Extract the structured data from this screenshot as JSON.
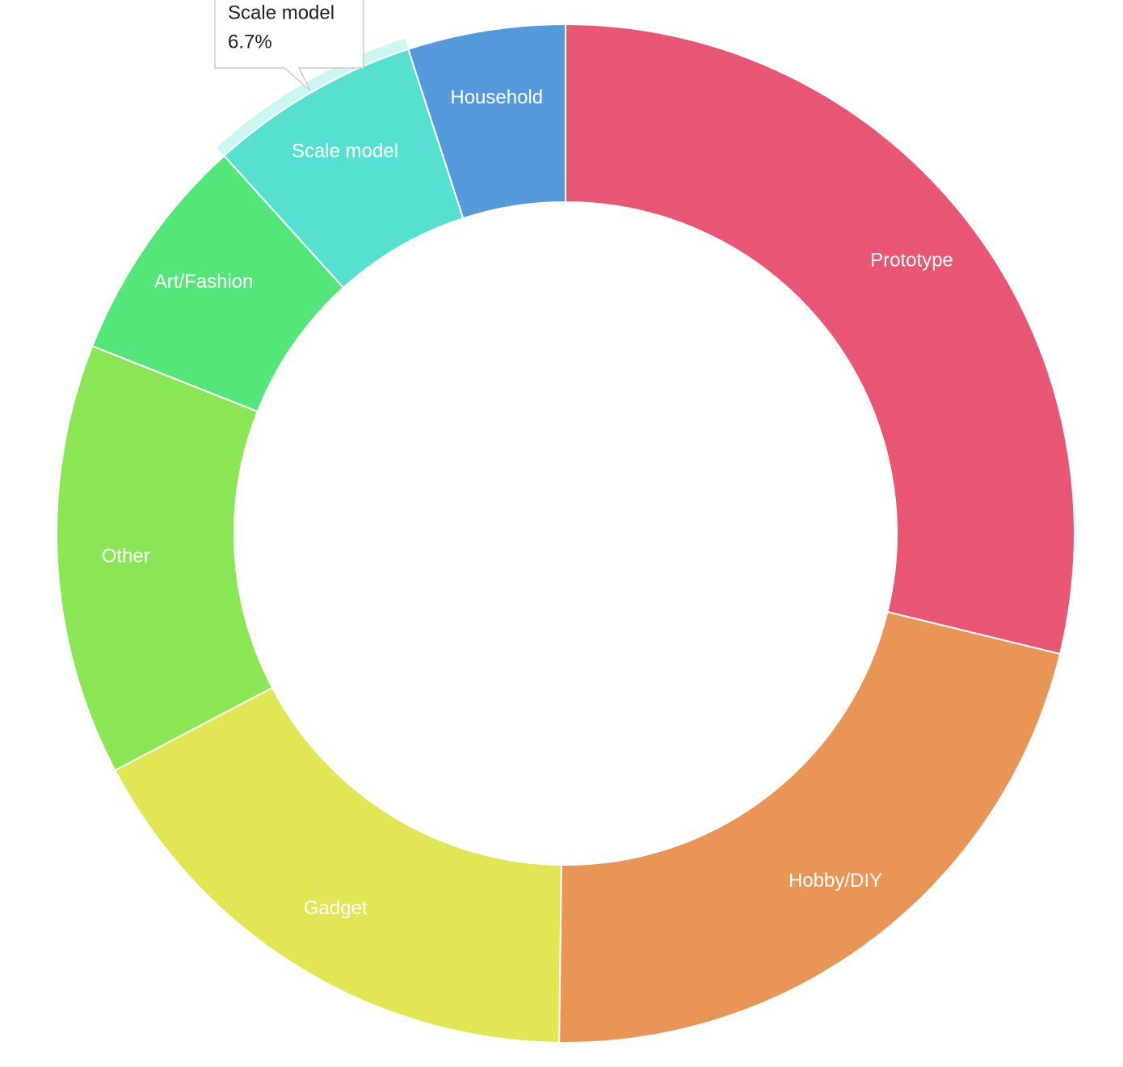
{
  "chart_data": {
    "type": "pie",
    "categories": [
      "Prototype",
      "Hobby/DIY",
      "Gadget",
      "Other",
      "Art/Fashion",
      "Scale model",
      "Household"
    ],
    "values": [
      28.8,
      21.4,
      17.1,
      13.7,
      7.3,
      6.7,
      5.0
    ],
    "colors": [
      "#e85673",
      "#e89556",
      "#e1e655",
      "#8be655",
      "#55e67a",
      "#55e0cf",
      "#5599dd"
    ],
    "donut": true,
    "tooltip": {
      "title": "Scale model",
      "text": "6.7%"
    }
  }
}
